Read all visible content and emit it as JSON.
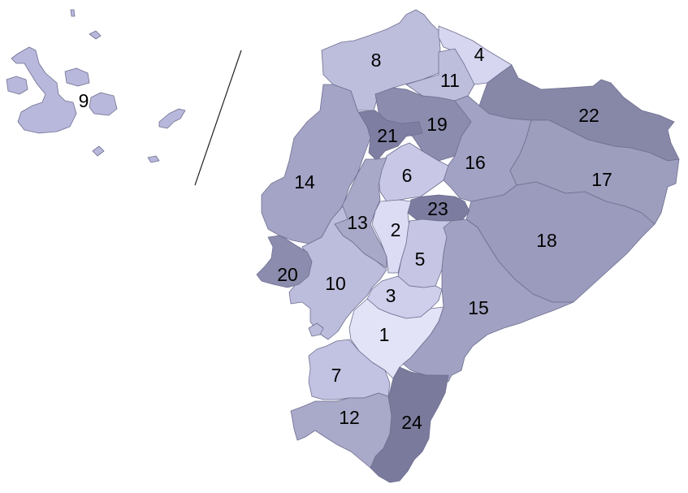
{
  "map": {
    "region_labels": [
      "1",
      "2",
      "3",
      "4",
      "5",
      "6",
      "7",
      "8",
      "9",
      "10",
      "11",
      "12",
      "13",
      "14",
      "15",
      "16",
      "17",
      "18",
      "19",
      "20",
      "21",
      "22",
      "23",
      "24"
    ]
  },
  "colors": {
    "lightest": "#e4e4f6",
    "light": "#d3d3ec",
    "light_medium": "#c3c3e0",
    "medium_light": "#b3b3d3",
    "medium": "#a6a6c6",
    "medium_dark": "#9696b8",
    "dark": "#8989aa",
    "darkest": "#7a7a9c",
    "border": "#6e6e90"
  }
}
